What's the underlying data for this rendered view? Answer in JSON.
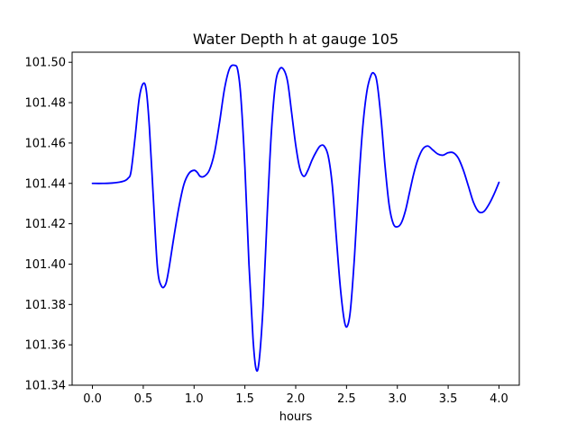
{
  "chart_data": {
    "type": "line",
    "title": "Water Depth h at gauge 105",
    "xlabel": "hours",
    "ylabel": "",
    "xlim": [
      -0.2,
      4.2
    ],
    "ylim": [
      101.34,
      101.505
    ],
    "grid": false,
    "x_ticks": [
      0.0,
      0.5,
      1.0,
      1.5,
      2.0,
      2.5,
      3.0,
      3.5,
      4.0
    ],
    "x_tick_labels": [
      "0.0",
      "0.5",
      "1.0",
      "1.5",
      "2.0",
      "2.5",
      "3.0",
      "3.5",
      "4.0"
    ],
    "y_ticks": [
      101.34,
      101.36,
      101.38,
      101.4,
      101.42,
      101.44,
      101.46,
      101.48,
      101.5
    ],
    "y_tick_labels": [
      "101.34",
      "101.36",
      "101.38",
      "101.40",
      "101.42",
      "101.44",
      "101.46",
      "101.48",
      "101.50"
    ],
    "series": [
      {
        "color": "#0000ff",
        "x": [
          0.0,
          0.1,
          0.2,
          0.3,
          0.35,
          0.38,
          0.42,
          0.46,
          0.5,
          0.53,
          0.56,
          0.6,
          0.64,
          0.68,
          0.72,
          0.75,
          0.8,
          0.85,
          0.9,
          0.95,
          1.0,
          1.03,
          1.06,
          1.1,
          1.15,
          1.2,
          1.25,
          1.3,
          1.35,
          1.4,
          1.43,
          1.46,
          1.5,
          1.54,
          1.58,
          1.61,
          1.64,
          1.68,
          1.72,
          1.76,
          1.8,
          1.84,
          1.88,
          1.92,
          1.96,
          2.0,
          2.04,
          2.08,
          2.12,
          2.16,
          2.2,
          2.24,
          2.28,
          2.32,
          2.36,
          2.4,
          2.44,
          2.48,
          2.51,
          2.54,
          2.58,
          2.62,
          2.66,
          2.7,
          2.74,
          2.77,
          2.8,
          2.84,
          2.88,
          2.92,
          2.96,
          3.0,
          3.04,
          3.08,
          3.12,
          3.16,
          3.2,
          3.25,
          3.3,
          3.35,
          3.4,
          3.45,
          3.5,
          3.55,
          3.6,
          3.65,
          3.7,
          3.75,
          3.8,
          3.85,
          3.9,
          3.95,
          4.0
        ],
        "y": [
          101.44,
          101.44,
          101.4402,
          101.441,
          101.4425,
          101.446,
          101.463,
          101.482,
          101.4895,
          101.486,
          101.468,
          101.432,
          101.398,
          101.389,
          101.39,
          101.397,
          101.413,
          101.428,
          101.4395,
          101.445,
          101.4465,
          101.4455,
          101.4435,
          101.4435,
          101.4465,
          101.455,
          101.47,
          101.487,
          101.497,
          101.4985,
          101.496,
          101.483,
          101.448,
          101.4,
          101.363,
          101.348,
          101.352,
          101.38,
          101.425,
          101.465,
          101.489,
          101.4965,
          101.4965,
          101.4905,
          101.475,
          101.459,
          101.4475,
          101.4435,
          101.4465,
          101.4515,
          101.4555,
          101.4585,
          101.4585,
          101.4535,
          101.439,
          101.413,
          101.388,
          101.3715,
          101.3695,
          101.378,
          101.405,
          101.44,
          101.468,
          101.4855,
          101.4935,
          101.4945,
          101.49,
          101.472,
          101.448,
          101.429,
          101.42,
          101.4185,
          101.4205,
          101.4265,
          101.4355,
          101.4445,
          101.4515,
          101.457,
          101.4585,
          101.4565,
          101.4545,
          101.454,
          101.4552,
          101.4552,
          101.4525,
          101.4465,
          101.4385,
          101.4305,
          101.426,
          101.426,
          101.4295,
          101.4345,
          101.4405
        ]
      }
    ]
  }
}
